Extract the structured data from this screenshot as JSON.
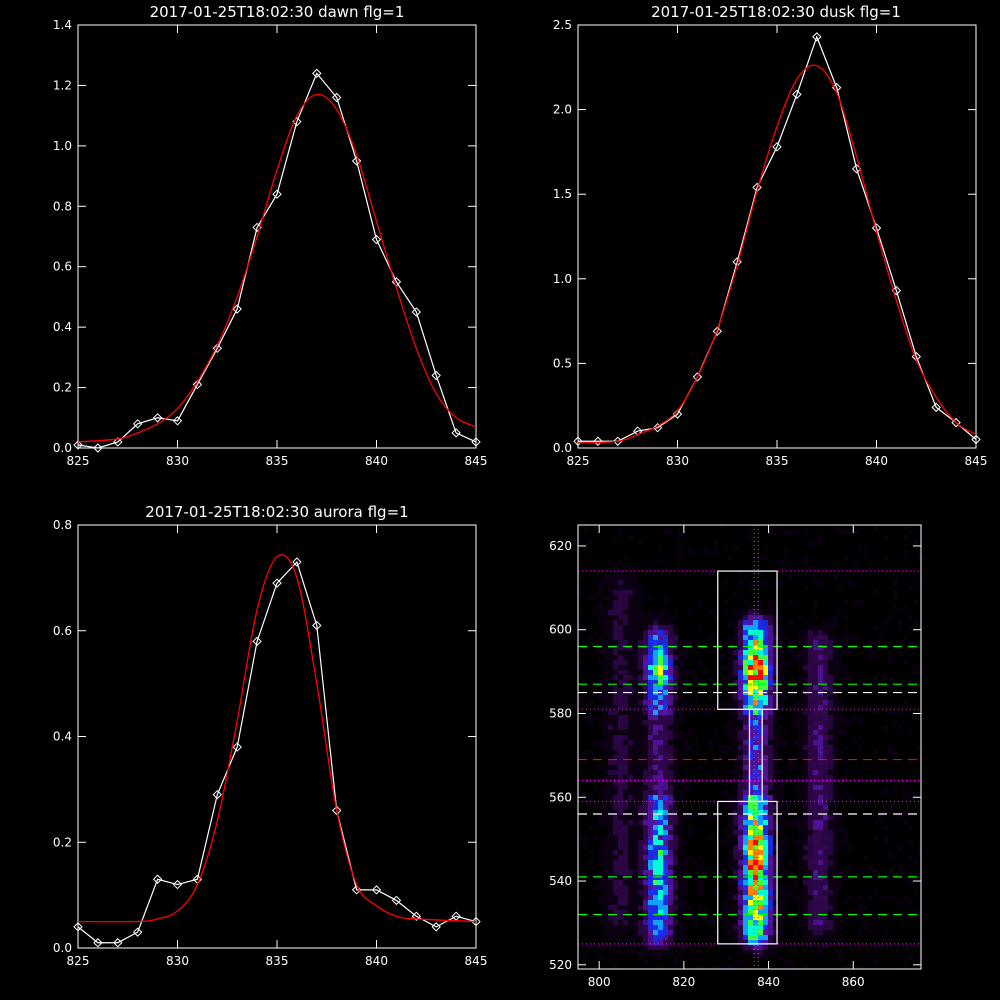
{
  "colors": {
    "background": "#000000",
    "axis": "#ffffff",
    "data_line": "#ffffff",
    "fit_line": "#ff0000",
    "box": "#ffffff",
    "dotted_guide": "#ff00ff",
    "dashed_green": "#00ff00",
    "dashed_red": "#ff0000",
    "dashed_white": "#ffffff"
  },
  "chart_data": [
    {
      "type": "line",
      "title": "2017-01-25T18:02:30 dawn flg=1",
      "xlim": [
        825,
        845
      ],
      "ylim": [
        0,
        1.4
      ],
      "xticks": [
        "825",
        "830",
        "835",
        "840",
        "845"
      ],
      "yticks": [
        "0.0",
        "0.2",
        "0.4",
        "0.6",
        "0.8",
        "1.0",
        "1.2",
        "1.4"
      ],
      "xtick_values": [
        825,
        830,
        835,
        840,
        845
      ],
      "ytick_values": [
        0,
        0.2,
        0.4,
        0.6,
        0.8,
        1.0,
        1.2,
        1.4
      ],
      "series": [
        {
          "style": "data",
          "markers": "diamond",
          "x": [
            825,
            826,
            827,
            828,
            829,
            830,
            831,
            832,
            833,
            834,
            835,
            836,
            837,
            838,
            839,
            840,
            841,
            842,
            843,
            844,
            845
          ],
          "y": [
            0.01,
            0.0,
            0.02,
            0.08,
            0.1,
            0.09,
            0.21,
            0.33,
            0.46,
            0.73,
            0.84,
            1.08,
            1.24,
            1.16,
            0.95,
            0.69,
            0.55,
            0.45,
            0.24,
            0.05,
            0.02
          ]
        },
        {
          "style": "fit",
          "x": [
            825,
            827,
            828,
            829,
            830,
            831,
            832,
            833,
            834,
            835,
            836,
            837,
            838,
            839,
            840,
            841,
            842,
            843,
            844,
            845
          ],
          "y": [
            0.02,
            0.03,
            0.05,
            0.08,
            0.13,
            0.22,
            0.34,
            0.5,
            0.7,
            0.92,
            1.1,
            1.17,
            1.12,
            0.97,
            0.75,
            0.53,
            0.33,
            0.18,
            0.1,
            0.07
          ]
        }
      ]
    },
    {
      "type": "line",
      "title": "2017-01-25T18:02:30 dusk flg=1",
      "xlim": [
        825,
        845
      ],
      "ylim": [
        0,
        2.5
      ],
      "xticks": [
        "825",
        "830",
        "835",
        "840",
        "845"
      ],
      "yticks": [
        "0.0",
        "0.5",
        "1.0",
        "1.5",
        "2.0",
        "2.5"
      ],
      "xtick_values": [
        825,
        830,
        835,
        840,
        845
      ],
      "ytick_values": [
        0,
        0.5,
        1.0,
        1.5,
        2.0,
        2.5
      ],
      "series": [
        {
          "style": "data",
          "markers": "diamond",
          "x": [
            825,
            826,
            827,
            828,
            829,
            830,
            831,
            832,
            833,
            834,
            835,
            836,
            837,
            838,
            839,
            840,
            841,
            842,
            843,
            844,
            845
          ],
          "y": [
            0.04,
            0.04,
            0.04,
            0.1,
            0.12,
            0.2,
            0.42,
            0.69,
            1.1,
            1.54,
            1.78,
            2.09,
            2.43,
            2.13,
            1.65,
            1.3,
            0.93,
            0.54,
            0.24,
            0.15,
            0.05
          ]
        },
        {
          "style": "fit",
          "x": [
            825,
            827,
            828,
            829,
            830,
            831,
            832,
            833,
            834,
            835,
            836,
            837,
            838,
            839,
            840,
            841,
            842,
            843,
            844,
            845
          ],
          "y": [
            0.03,
            0.04,
            0.08,
            0.13,
            0.22,
            0.42,
            0.7,
            1.08,
            1.52,
            1.9,
            2.18,
            2.26,
            2.1,
            1.72,
            1.28,
            0.87,
            0.52,
            0.3,
            0.15,
            0.08
          ]
        }
      ]
    },
    {
      "type": "line",
      "title": "2017-01-25T18:02:30 aurora flg=1",
      "xlim": [
        825,
        845
      ],
      "ylim": [
        0,
        0.8
      ],
      "xticks": [
        "825",
        "830",
        "835",
        "840",
        "845"
      ],
      "yticks": [
        "0.0",
        "0.2",
        "0.4",
        "0.6",
        "0.8"
      ],
      "xtick_values": [
        825,
        830,
        835,
        840,
        845
      ],
      "ytick_values": [
        0,
        0.2,
        0.4,
        0.6,
        0.8
      ],
      "series": [
        {
          "style": "data",
          "markers": "diamond",
          "x": [
            825,
            826,
            827,
            828,
            829,
            830,
            831,
            832,
            833,
            834,
            835,
            836,
            837,
            838,
            839,
            840,
            841,
            842,
            843,
            844,
            845
          ],
          "y": [
            0.04,
            0.01,
            0.01,
            0.03,
            0.13,
            0.12,
            0.13,
            0.29,
            0.38,
            0.58,
            0.69,
            0.73,
            0.61,
            0.26,
            0.11,
            0.11,
            0.09,
            0.06,
            0.04,
            0.06,
            0.05
          ]
        },
        {
          "style": "fit",
          "x": [
            825,
            828,
            829,
            830,
            831,
            832,
            833,
            834,
            835,
            836,
            837,
            838,
            839,
            840,
            841,
            842,
            845
          ],
          "y": [
            0.05,
            0.05,
            0.055,
            0.07,
            0.12,
            0.24,
            0.43,
            0.64,
            0.74,
            0.7,
            0.5,
            0.26,
            0.12,
            0.08,
            0.06,
            0.055,
            0.05
          ]
        }
      ]
    },
    {
      "type": "heatmap",
      "title": "",
      "xlim": [
        795,
        876
      ],
      "ylim": [
        519,
        625
      ],
      "xticks": [
        "800",
        "820",
        "840",
        "860"
      ],
      "yticks": [
        "520",
        "540",
        "560",
        "580",
        "600",
        "620"
      ],
      "xtick_values": [
        800,
        820,
        840,
        860
      ],
      "ytick_values": [
        520,
        540,
        560,
        580,
        600,
        620
      ],
      "colormap": [
        "#1a0028",
        "#4b0a78",
        "#6a18c8",
        "#2030ff",
        "#10a0ff",
        "#00ffd0",
        "#40ff40",
        "#ffff00",
        "#ff8000",
        "#ff0000"
      ],
      "emission_bands": [
        {
          "x": 814,
          "y_from": 527,
          "y_to": 598,
          "peak": 0.6
        },
        {
          "x": 837,
          "y_from": 527,
          "y_to": 600,
          "peak": 1.0
        },
        {
          "x": 852,
          "y_from": 530,
          "y_to": 597,
          "peak": 0.3
        },
        {
          "x": 805,
          "y_from": 530,
          "y_to": 610,
          "peak": 0.18
        }
      ],
      "boxes": [
        {
          "x": [
            828,
            842
          ],
          "y": [
            581,
            614
          ]
        },
        {
          "x": [
            828,
            842
          ],
          "y": [
            525,
            559
          ]
        },
        {
          "x": [
            835.5,
            838.5
          ],
          "y": [
            559,
            581
          ]
        }
      ],
      "vertical_dotted_lines": [
        836.6,
        837.6
      ],
      "horizontal_lines": [
        {
          "y": 614,
          "style": "dotted",
          "color": "#ff00ff"
        },
        {
          "y": 596,
          "style": "dashed",
          "color": "#00ff00"
        },
        {
          "y": 587,
          "style": "dashed",
          "color": "#00ff00"
        },
        {
          "y": 585,
          "style": "dashed",
          "color": "#ffffff"
        },
        {
          "y": 581,
          "style": "dotted",
          "color": "#ff00ff"
        },
        {
          "y": 569,
          "style": "dashed",
          "color": "#ff0000"
        },
        {
          "y": 564,
          "style": "dotted",
          "color": "#ff00ff"
        },
        {
          "y": 559,
          "style": "dotted",
          "color": "#ff00ff"
        },
        {
          "y": 556,
          "style": "dashed",
          "color": "#ffffff"
        },
        {
          "y": 541,
          "style": "dashed",
          "color": "#00ff00"
        },
        {
          "y": 532,
          "style": "dashed",
          "color": "#00ff00"
        },
        {
          "y": 525,
          "style": "dotted",
          "color": "#ff00ff"
        }
      ]
    }
  ]
}
